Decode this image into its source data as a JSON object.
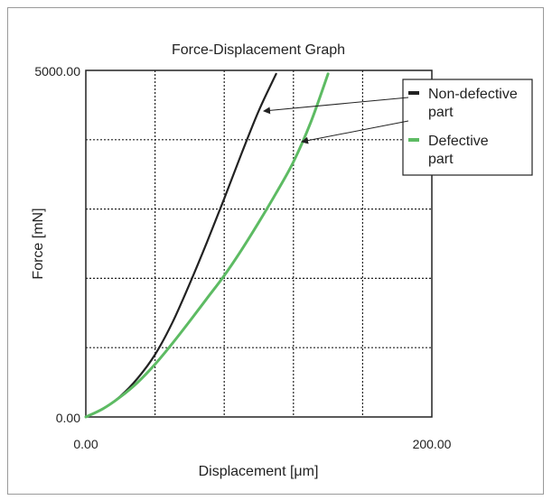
{
  "chart_data": {
    "type": "line",
    "title": "Force-Displacement Graph",
    "xlabel": "Displacement [μm]",
    "ylabel": "Force [mN]",
    "xlim": [
      0,
      200
    ],
    "ylim": [
      0,
      5000
    ],
    "grid": true,
    "x_tick_labels": [
      "0.00",
      "200.00"
    ],
    "y_tick_labels": [
      "0.00",
      "5000.00"
    ],
    "legend_position": "top-right",
    "series": [
      {
        "name": "Non-defective part",
        "color": "#222222",
        "x": [
          0,
          10,
          20,
          30,
          40,
          50,
          60,
          70,
          80,
          90,
          100,
          110
        ],
        "y": [
          0,
          120,
          300,
          560,
          900,
          1360,
          1920,
          2520,
          3150,
          3800,
          4420,
          4950
        ]
      },
      {
        "name": "Defective part",
        "color": "#5dbb63",
        "x": [
          0,
          10,
          20,
          30,
          40,
          50,
          60,
          70,
          80,
          90,
          100,
          110,
          120,
          130,
          140
        ],
        "y": [
          0,
          120,
          290,
          500,
          760,
          1060,
          1380,
          1710,
          2040,
          2410,
          2810,
          3230,
          3680,
          4250,
          4950
        ]
      }
    ]
  }
}
